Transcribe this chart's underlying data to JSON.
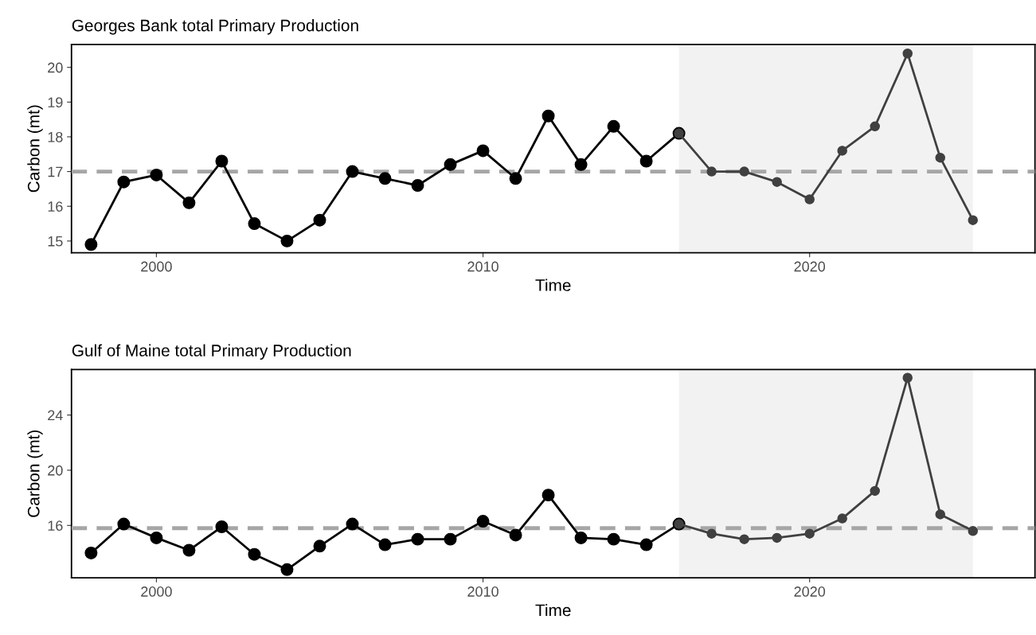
{
  "chart_data": [
    {
      "type": "line",
      "title": "Georges Bank total Primary Production",
      "xlabel": "Time",
      "ylabel": "Carbon (mt)",
      "marker": "circle",
      "line_style": "solid",
      "grid": false,
      "legend": false,
      "series": [
        {
          "color": "#000000",
          "x": [
            1998,
            1999,
            2000,
            2001,
            2002,
            2003,
            2004,
            2005,
            2006,
            2007,
            2008,
            2009,
            2010,
            2011,
            2012,
            2013,
            2014,
            2015,
            2016
          ],
          "values": [
            14.9,
            16.7,
            16.9,
            16.1,
            17.3,
            15.5,
            15.0,
            15.6,
            17.0,
            16.8,
            16.6,
            17.2,
            17.6,
            16.8,
            18.6,
            17.2,
            18.3,
            17.3,
            18.1
          ]
        },
        {
          "color": "#404040",
          "x": [
            2016,
            2017,
            2018,
            2019,
            2020,
            2021,
            2022,
            2023,
            2024,
            2025
          ],
          "values": [
            18.1,
            17.0,
            17.0,
            16.7,
            16.2,
            17.6,
            18.3,
            20.4,
            17.4,
            15.6
          ]
        }
      ],
      "xlim": [
        1997.4,
        2026.9
      ],
      "xticks": [
        2000,
        2010,
        2020
      ],
      "ylim": [
        14.66,
        20.66
      ],
      "yticks": [
        15,
        16,
        17,
        18,
        19,
        20
      ],
      "ref_lines": [
        {
          "axis": "y",
          "value": 17.0,
          "color": "#a6a6a6",
          "line_style": "dashed"
        }
      ],
      "bands": [
        {
          "axis": "x",
          "from": 2016,
          "to": 2025,
          "color": "#f2f2f2"
        }
      ]
    },
    {
      "type": "line",
      "title": "Gulf of Maine total Primary Production",
      "xlabel": "Time",
      "ylabel": "Carbon (mt)",
      "marker": "circle",
      "line_style": "solid",
      "grid": false,
      "legend": false,
      "series": [
        {
          "color": "#000000",
          "x": [
            1998,
            1999,
            2000,
            2001,
            2002,
            2003,
            2004,
            2005,
            2006,
            2007,
            2008,
            2009,
            2010,
            2011,
            2012,
            2013,
            2014,
            2015,
            2016
          ],
          "values": [
            14.0,
            16.1,
            15.1,
            14.2,
            15.9,
            13.9,
            12.8,
            14.5,
            16.1,
            14.6,
            15.0,
            15.0,
            16.3,
            15.3,
            18.2,
            15.1,
            15.0,
            14.6,
            16.1
          ]
        },
        {
          "color": "#404040",
          "x": [
            2016,
            2017,
            2018,
            2019,
            2020,
            2021,
            2022,
            2023,
            2024,
            2025
          ],
          "values": [
            16.1,
            15.4,
            15.0,
            15.1,
            15.4,
            16.5,
            18.5,
            26.7,
            16.8,
            15.6
          ]
        }
      ],
      "xlim": [
        1997.4,
        2026.9
      ],
      "xticks": [
        2000,
        2010,
        2020
      ],
      "ylim": [
        12.2,
        27.3
      ],
      "yticks": [
        16,
        20,
        24
      ],
      "ref_lines": [
        {
          "axis": "y",
          "value": 15.8,
          "color": "#a6a6a6",
          "line_style": "dashed"
        }
      ],
      "bands": [
        {
          "axis": "x",
          "from": 2016,
          "to": 2025,
          "color": "#f2f2f2"
        }
      ]
    }
  ]
}
